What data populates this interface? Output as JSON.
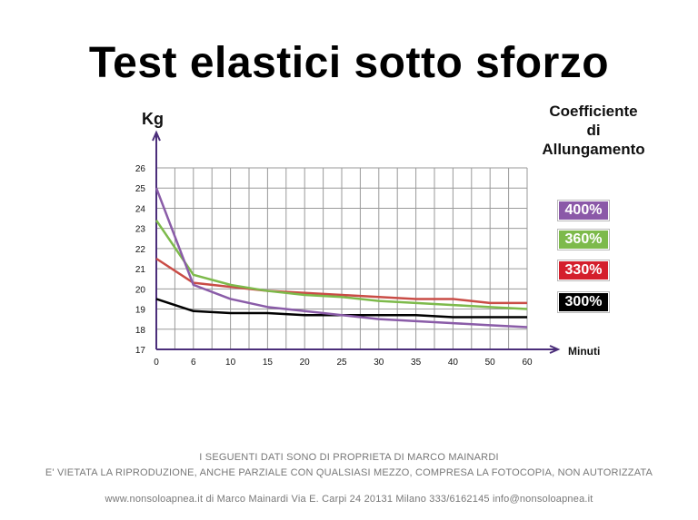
{
  "page": {
    "title": "Test elastici sotto sforzo",
    "legend_title": [
      "Coefficiente",
      "di",
      "Allungamento"
    ],
    "footer_line1": "I SEGUENTI DATI SONO DI PROPRIETA DI MARCO MAINARDI",
    "footer_line2": "E' VIETATA LA RIPRODUZIONE, ANCHE PARZIALE CON QUALSIASI MEZZO, COMPRESA LA FOTOCOPIA, NON AUTORIZZATA",
    "footer_line3": "www.nonsoloapnea.it di Marco Mainardi Via E. Carpi 24 20131 Milano  333/6162145 info@nonsoloapnea.it"
  },
  "chart_data": {
    "type": "line",
    "ylabel": "Kg",
    "xlabel": "Minuti",
    "categories": [
      "0",
      "6",
      "10",
      "15",
      "20",
      "25",
      "30",
      "35",
      "40",
      "50",
      "60"
    ],
    "ylim": [
      17,
      26
    ],
    "yticks": [
      "17",
      "18",
      "19",
      "20",
      "21",
      "22",
      "23",
      "24",
      "25",
      "26"
    ],
    "grid": true,
    "legend_position": "right",
    "series": [
      {
        "name": "400%",
        "color": "#8a5ca8",
        "values": [
          25.0,
          20.2,
          19.5,
          19.1,
          18.9,
          18.7,
          18.5,
          18.4,
          18.3,
          18.2,
          18.1
        ]
      },
      {
        "name": "360%",
        "color": "#7dba4b",
        "values": [
          23.4,
          20.7,
          20.2,
          19.9,
          19.7,
          19.6,
          19.4,
          19.3,
          19.2,
          19.1,
          19.0
        ]
      },
      {
        "name": "330%",
        "color": "#c94c46",
        "values": [
          21.5,
          20.3,
          20.1,
          19.9,
          19.8,
          19.7,
          19.6,
          19.5,
          19.5,
          19.3,
          19.3
        ]
      },
      {
        "name": "300%",
        "color": "#000000",
        "values": [
          19.5,
          18.9,
          18.8,
          18.8,
          18.7,
          18.7,
          18.7,
          18.7,
          18.6,
          18.6,
          18.6
        ]
      }
    ]
  },
  "legend_box_colors": [
    "#8b59a8",
    "#7dba4b",
    "#d41f2c",
    "#000000"
  ]
}
